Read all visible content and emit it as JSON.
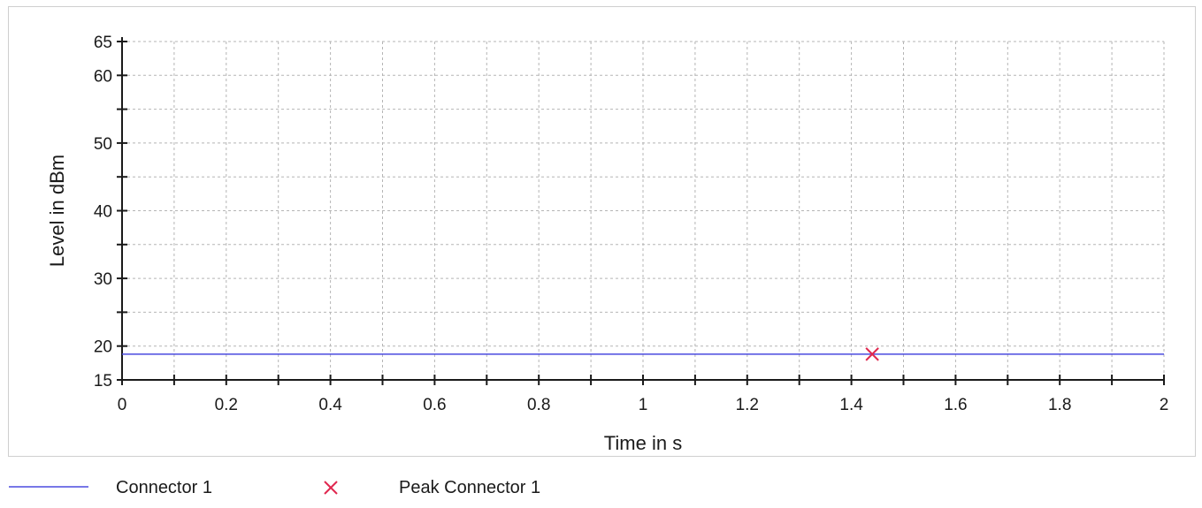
{
  "chart_data": {
    "type": "line",
    "title": "",
    "xlabel": "Time in s",
    "ylabel": "Level in dBm",
    "xlim": [
      0,
      2
    ],
    "ylim": [
      15,
      65
    ],
    "x_ticks": [
      {
        "value": 0,
        "label": "0"
      },
      {
        "value": 0.2,
        "label": "0.2"
      },
      {
        "value": 0.4,
        "label": "0.4"
      },
      {
        "value": 0.6,
        "label": "0.6"
      },
      {
        "value": 0.8,
        "label": "0.8"
      },
      {
        "value": 1,
        "label": "1"
      },
      {
        "value": 1.2,
        "label": "1.2"
      },
      {
        "value": 1.4,
        "label": "1.4"
      },
      {
        "value": 1.6,
        "label": "1.6"
      },
      {
        "value": 1.8,
        "label": "1.8"
      },
      {
        "value": 2,
        "label": "2"
      }
    ],
    "x_minor_step": 0.1,
    "y_ticks": [
      {
        "value": 15,
        "label": "15"
      },
      {
        "value": 20,
        "label": "20"
      },
      {
        "value": 30,
        "label": "30"
      },
      {
        "value": 40,
        "label": "40"
      },
      {
        "value": 50,
        "label": "50"
      },
      {
        "value": 60,
        "label": "60"
      },
      {
        "value": 65,
        "label": "65"
      }
    ],
    "y_minor_ticks": [
      25,
      35,
      45,
      55
    ],
    "grid": true,
    "legend_position": "bottom",
    "series": [
      {
        "name": "Connector 1",
        "kind": "line",
        "color": "#4a4adf",
        "points": [
          {
            "x": 0,
            "y": 18.8
          },
          {
            "x": 2,
            "y": 18.8
          }
        ]
      },
      {
        "name": "Peak Connector 1",
        "kind": "marker",
        "marker": "x",
        "color": "#e0284f",
        "points": [
          {
            "x": 1.44,
            "y": 18.8
          }
        ]
      }
    ]
  }
}
